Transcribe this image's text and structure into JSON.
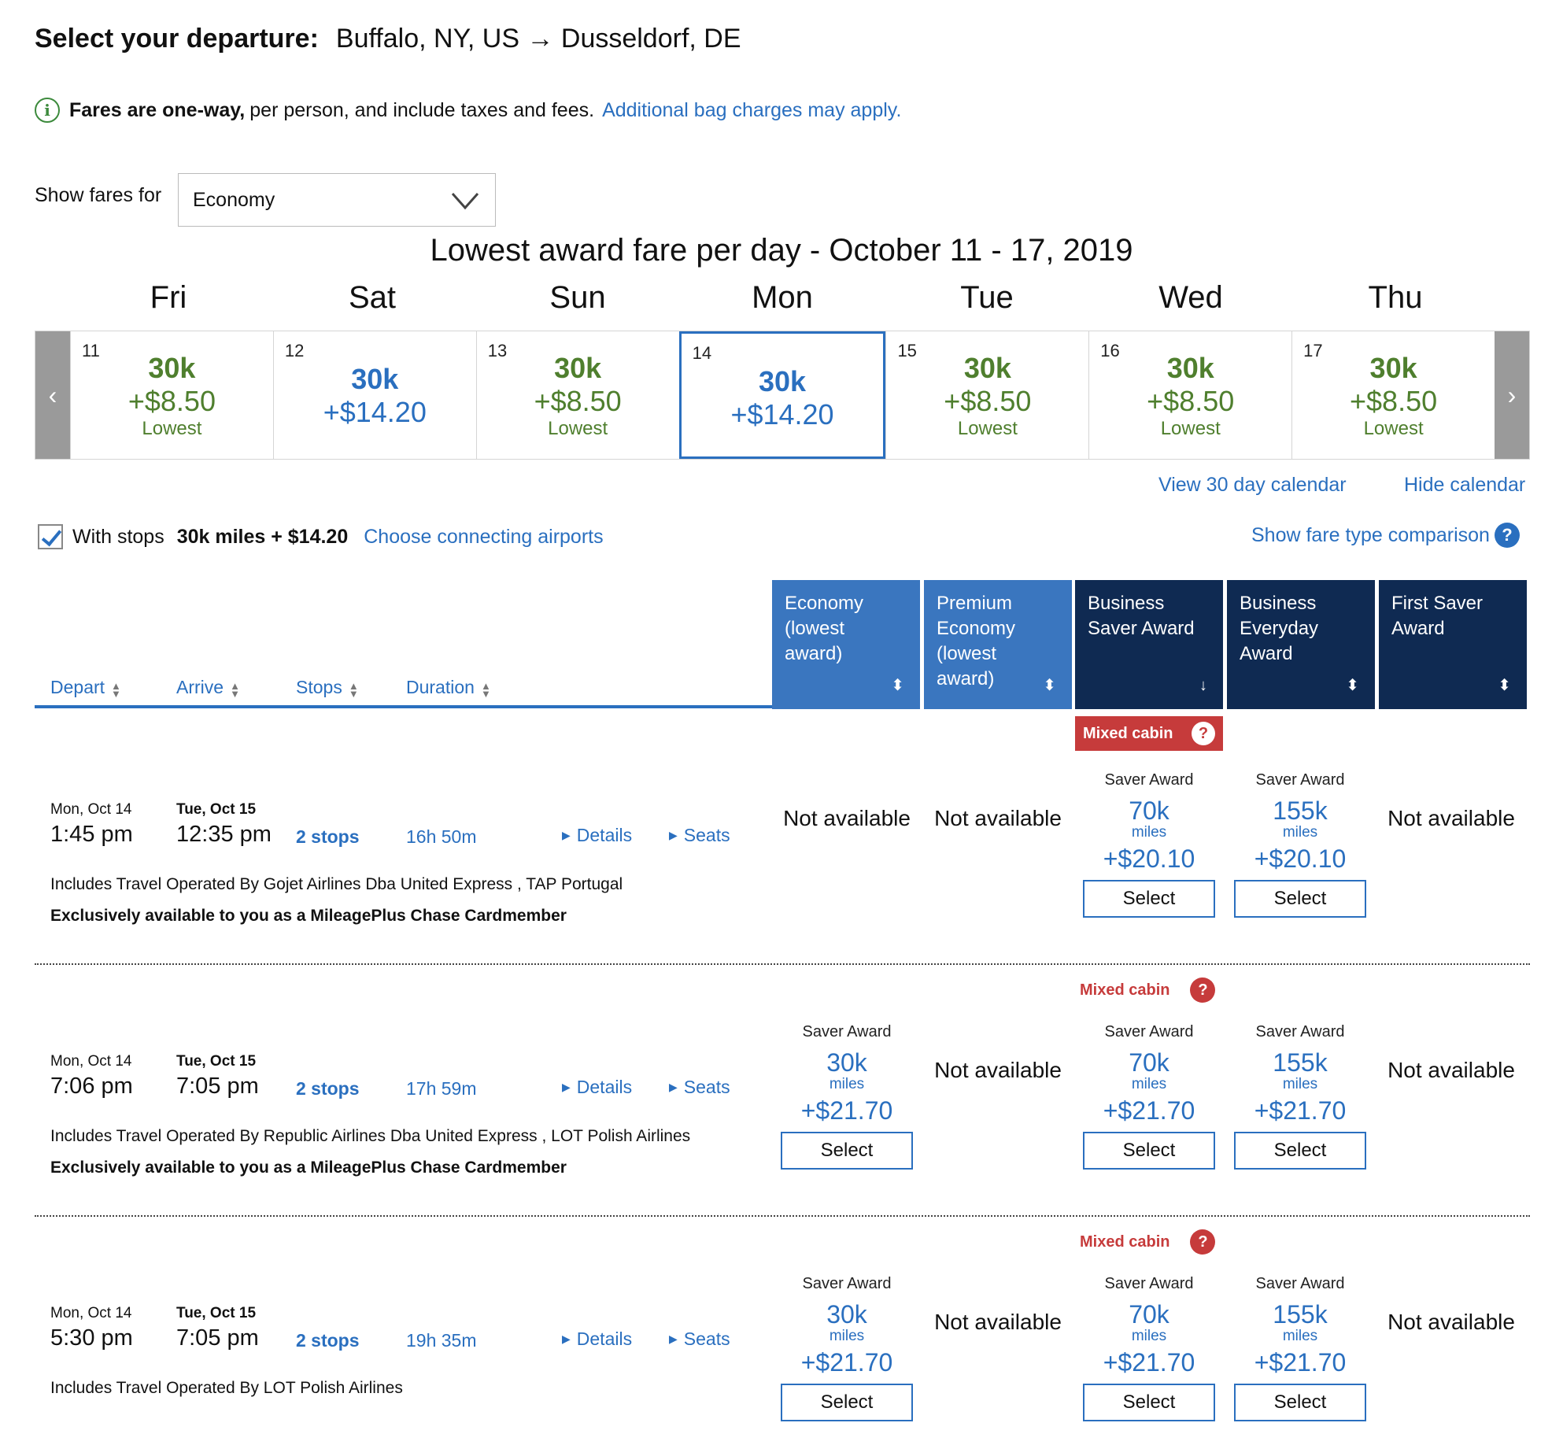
{
  "header": {
    "label": "Select your departure:",
    "route": "Buffalo, NY, US → Dusseldorf, DE"
  },
  "notice": {
    "bold": "Fares are one-way,",
    "text": "per person, and include taxes and fees.",
    "link": "Additional bag charges may apply."
  },
  "fare_filter": {
    "label": "Show fares for",
    "selected": "Economy"
  },
  "calendar": {
    "title": "Lowest award fare per day - October 11 - 17, 2019",
    "days": [
      {
        "dow": "Fri",
        "num": "11",
        "miles": "30k",
        "price": "+$8.50",
        "note": "Lowest",
        "style": "green"
      },
      {
        "dow": "Sat",
        "num": "12",
        "miles": "30k",
        "price": "+$14.20",
        "note": "",
        "style": "blue"
      },
      {
        "dow": "Sun",
        "num": "13",
        "miles": "30k",
        "price": "+$8.50",
        "note": "Lowest",
        "style": "green"
      },
      {
        "dow": "Mon",
        "num": "14",
        "miles": "30k",
        "price": "+$14.20",
        "note": "",
        "style": "blue"
      },
      {
        "dow": "Tue",
        "num": "15",
        "miles": "30k",
        "price": "+$8.50",
        "note": "Lowest",
        "style": "green"
      },
      {
        "dow": "Wed",
        "num": "16",
        "miles": "30k",
        "price": "+$8.50",
        "note": "Lowest",
        "style": "green"
      },
      {
        "dow": "Thu",
        "num": "17",
        "miles": "30k",
        "price": "+$8.50",
        "note": "Lowest",
        "style": "green"
      }
    ],
    "prev_glyph": "‹",
    "next_glyph": "›",
    "view30": "View 30 day calendar",
    "hide": "Hide calendar"
  },
  "stops_filter": {
    "label": "With stops",
    "summary": "30k miles + $14.20",
    "link": "Choose connecting airports",
    "compare": "Show fare type comparison"
  },
  "sort_columns": [
    "Depart",
    "Arrive",
    "Stops",
    "Duration"
  ],
  "fare_columns": [
    {
      "label": "Economy (lowest award)",
      "style": "light",
      "arrow": "⬍"
    },
    {
      "label": "Premium Economy (lowest award)",
      "style": "light",
      "arrow": "⬍"
    },
    {
      "label": "Business Saver Award",
      "style": "dark",
      "arrow": "↓"
    },
    {
      "label": "Business Everyday Award",
      "style": "dark",
      "arrow": "⬍"
    },
    {
      "label": "First Saver Award",
      "style": "dark",
      "arrow": "⬍"
    }
  ],
  "labels": {
    "mixed_cabin": "Mixed cabin",
    "saver_award": "Saver Award",
    "miles": "miles",
    "select": "Select",
    "not_available": "Not available",
    "details": "Details",
    "seats": "Seats",
    "q": "?",
    "info": "i"
  },
  "flights": [
    {
      "dep_date": "Mon, Oct 14",
      "dep_time": "1:45 pm",
      "arr_date": "Tue, Oct 15",
      "arr_time": "12:35 pm",
      "stops": "2 stops",
      "duration": "16h 50m",
      "operated": "Includes Travel Operated By Gojet Airlines Dba United Express , TAP Portugal",
      "exclusive": "Exclusively available to you as a MileagePlus Chase Cardmember",
      "economy": null,
      "business_saver": {
        "miles": "70k",
        "price": "+$20.10"
      },
      "business_everyday": {
        "miles": "155k",
        "price": "+$20.10"
      }
    },
    {
      "dep_date": "Mon, Oct 14",
      "dep_time": "7:06 pm",
      "arr_date": "Tue, Oct 15",
      "arr_time": "7:05 pm",
      "stops": "2 stops",
      "duration": "17h 59m",
      "operated": "Includes Travel Operated By Republic Airlines Dba United Express , LOT Polish Airlines",
      "exclusive": "Exclusively available to you as a MileagePlus Chase Cardmember",
      "economy": {
        "miles": "30k",
        "price": "+$21.70"
      },
      "business_saver": {
        "miles": "70k",
        "price": "+$21.70"
      },
      "business_everyday": {
        "miles": "155k",
        "price": "+$21.70"
      }
    },
    {
      "dep_date": "Mon, Oct 14",
      "dep_time": "5:30 pm",
      "arr_date": "Tue, Oct 15",
      "arr_time": "7:05 pm",
      "stops": "2 stops",
      "duration": "19h 35m",
      "operated": "Includes Travel Operated By LOT Polish Airlines",
      "exclusive": "",
      "economy": {
        "miles": "30k",
        "price": "+$21.70"
      },
      "business_saver": {
        "miles": "70k",
        "price": "+$21.70"
      },
      "business_everyday": {
        "miles": "155k",
        "price": "+$21.70"
      }
    }
  ]
}
